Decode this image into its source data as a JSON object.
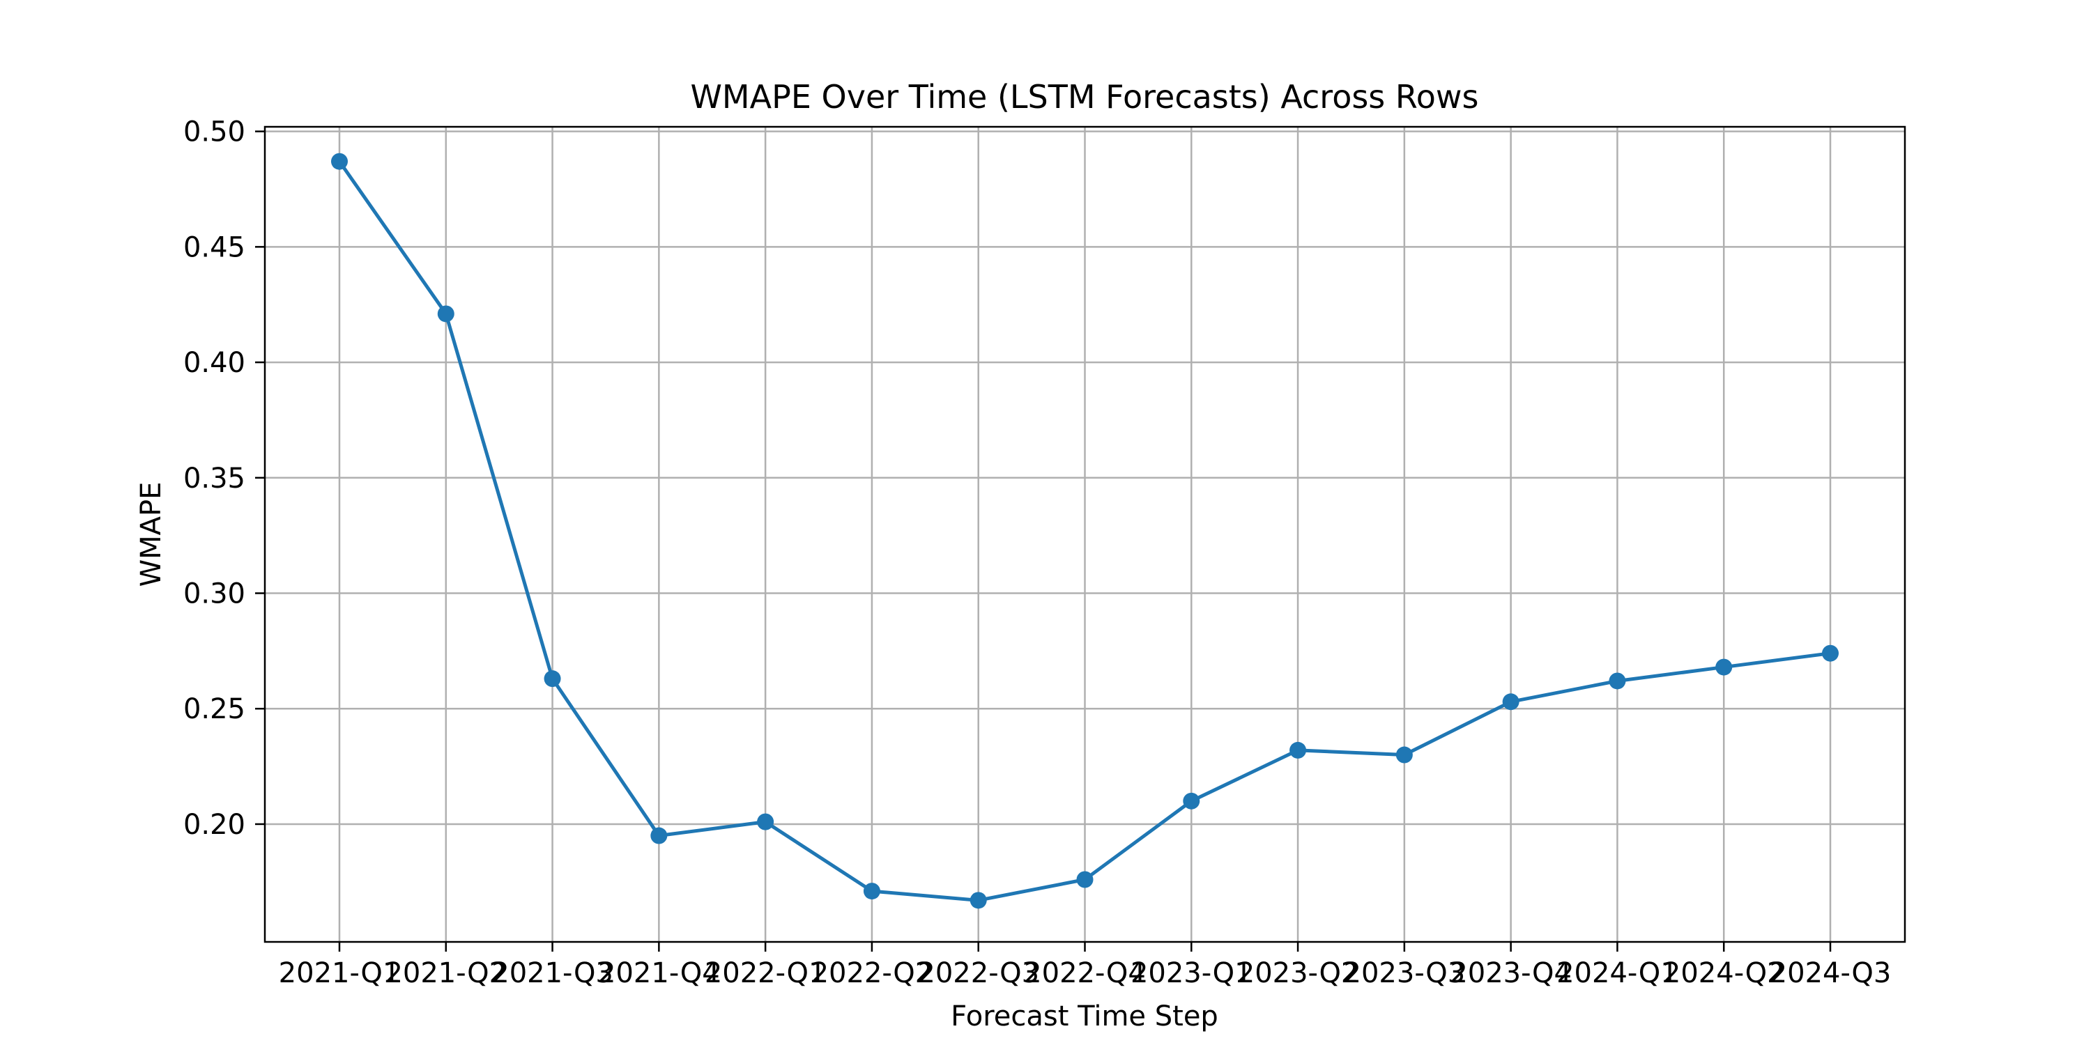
{
  "chart_data": {
    "type": "line",
    "title": "WMAPE Over Time (LSTM Forecasts) Across Rows",
    "xlabel": "Forecast Time Step",
    "ylabel": "WMAPE",
    "categories": [
      "2021-Q1",
      "2021-Q2",
      "2021-Q3",
      "2021-Q4",
      "2022-Q1",
      "2022-Q2",
      "2022-Q3",
      "2022-Q4",
      "2023-Q1",
      "2023-Q2",
      "2023-Q3",
      "2023-Q4",
      "2024-Q1",
      "2024-Q2",
      "2024-Q3"
    ],
    "series": [
      {
        "values": [
          0.487,
          0.421,
          0.263,
          0.195,
          0.201,
          0.171,
          0.167,
          0.176,
          0.21,
          0.232,
          0.23,
          0.253,
          0.262,
          0.268,
          0.274
        ],
        "color": "#1f77b4",
        "marker": "circle"
      }
    ],
    "ylim": [
      0.149,
      0.502
    ],
    "yticks": [
      0.2,
      0.25,
      0.3,
      0.35,
      0.4,
      0.45,
      0.5
    ],
    "ytick_labels": [
      "0.20",
      "0.25",
      "0.30",
      "0.35",
      "0.40",
      "0.45",
      "0.50"
    ],
    "grid": true,
    "legend": "none"
  }
}
